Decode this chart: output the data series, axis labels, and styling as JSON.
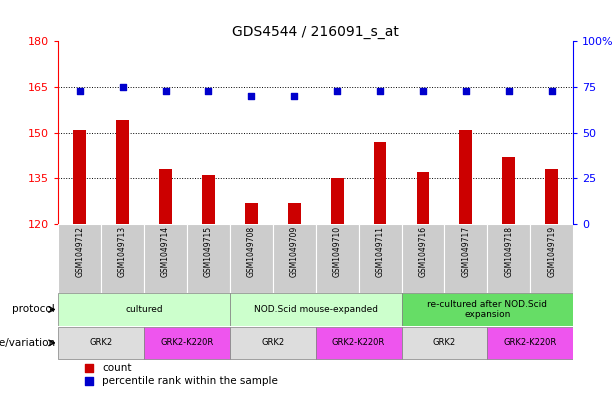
{
  "title": "GDS4544 / 216091_s_at",
  "samples": [
    "GSM1049712",
    "GSM1049713",
    "GSM1049714",
    "GSM1049715",
    "GSM1049708",
    "GSM1049709",
    "GSM1049710",
    "GSM1049711",
    "GSM1049716",
    "GSM1049717",
    "GSM1049718",
    "GSM1049719"
  ],
  "counts": [
    151,
    154,
    138,
    136,
    127,
    127,
    135,
    147,
    137,
    151,
    142,
    138
  ],
  "percentiles": [
    73,
    75,
    73,
    73,
    70,
    70,
    73,
    73,
    73,
    73,
    73,
    73
  ],
  "ylim_left": [
    120,
    180
  ],
  "ylim_right": [
    0,
    100
  ],
  "yticks_left": [
    120,
    135,
    150,
    165,
    180
  ],
  "yticks_right": [
    0,
    25,
    50,
    75,
    100
  ],
  "hlines": [
    135,
    150,
    165
  ],
  "bar_color": "#CC0000",
  "dot_color": "#0000CC",
  "protocol_groups": [
    {
      "label": "cultured",
      "start": 0,
      "end": 4,
      "color": "#CCFFCC"
    },
    {
      "label": "NOD.Scid mouse-expanded",
      "start": 4,
      "end": 8,
      "color": "#CCFFCC"
    },
    {
      "label": "re-cultured after NOD.Scid\nexpansion",
      "start": 8,
      "end": 12,
      "color": "#66DD66"
    }
  ],
  "genotype_groups": [
    {
      "label": "GRK2",
      "start": 0,
      "end": 2,
      "color": "#DDDDDD"
    },
    {
      "label": "GRK2-K220R",
      "start": 2,
      "end": 4,
      "color": "#EE55EE"
    },
    {
      "label": "GRK2",
      "start": 4,
      "end": 6,
      "color": "#DDDDDD"
    },
    {
      "label": "GRK2-K220R",
      "start": 6,
      "end": 8,
      "color": "#EE55EE"
    },
    {
      "label": "GRK2",
      "start": 8,
      "end": 10,
      "color": "#DDDDDD"
    },
    {
      "label": "GRK2-K220R",
      "start": 10,
      "end": 12,
      "color": "#EE55EE"
    }
  ],
  "protocol_label": "protocol",
  "genotype_label": "genotype/variation",
  "legend_count_label": "count",
  "legend_pct_label": "percentile rank within the sample",
  "bar_width": 0.3,
  "dot_size": 25,
  "sample_bg_color": "#CCCCCC",
  "sample_border_color": "#FFFFFF"
}
